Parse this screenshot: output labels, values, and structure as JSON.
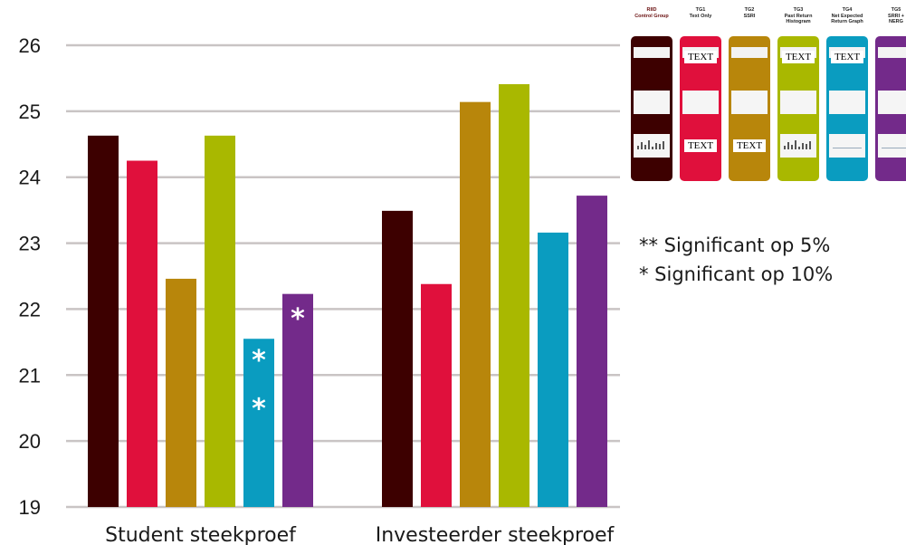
{
  "chart_data": {
    "type": "bar",
    "categories": [
      "Student steekproef",
      "Investeerder steekproef"
    ],
    "ylim": [
      19,
      26
    ],
    "yticks": [
      19,
      20,
      21,
      22,
      23,
      24,
      25,
      26
    ],
    "grid": true,
    "series": [
      {
        "color": "#3d0000",
        "values": [
          24.63,
          23.49
        ]
      },
      {
        "color": "#e0103c",
        "values": [
          24.25,
          22.38
        ]
      },
      {
        "color": "#b8860b",
        "values": [
          22.46,
          25.14
        ]
      },
      {
        "color": "#a9b800",
        "values": [
          24.63,
          25.41
        ]
      },
      {
        "color": "#0a9cc0",
        "values": [
          21.55,
          23.16
        ]
      },
      {
        "color": "#732a8a",
        "values": [
          22.23,
          23.72
        ]
      }
    ],
    "annotations": [
      {
        "category": 0,
        "series": 4,
        "text": "*",
        "y": 21.25
      },
      {
        "category": 0,
        "series": 4,
        "text": "*",
        "y": 20.52
      },
      {
        "category": 0,
        "series": 5,
        "text": "*",
        "y": 21.88
      }
    ]
  },
  "legend": [
    {
      "head": "RIID\nControl Group",
      "color": "#3d0000",
      "texts": []
    },
    {
      "head": "TG1\nText Only",
      "color": "#e0103c",
      "texts": [
        "TEXT",
        "TEXT"
      ]
    },
    {
      "head": "TG2\nSSRI",
      "color": "#b8860b",
      "texts": [
        "TEXT"
      ]
    },
    {
      "head": "TG3\nPast Return\nHistogram",
      "color": "#a9b800",
      "texts": [
        "TEXT"
      ]
    },
    {
      "head": "TG4\nNet Expected\nReturn Graph",
      "color": "#0a9cc0",
      "texts": [
        "TEXT"
      ]
    },
    {
      "head": "TG5\nSRRI +\nNERG",
      "color": "#732a8a",
      "texts": []
    }
  ],
  "notes": [
    "** Significant op 5%",
    "* Significant op 10%"
  ]
}
